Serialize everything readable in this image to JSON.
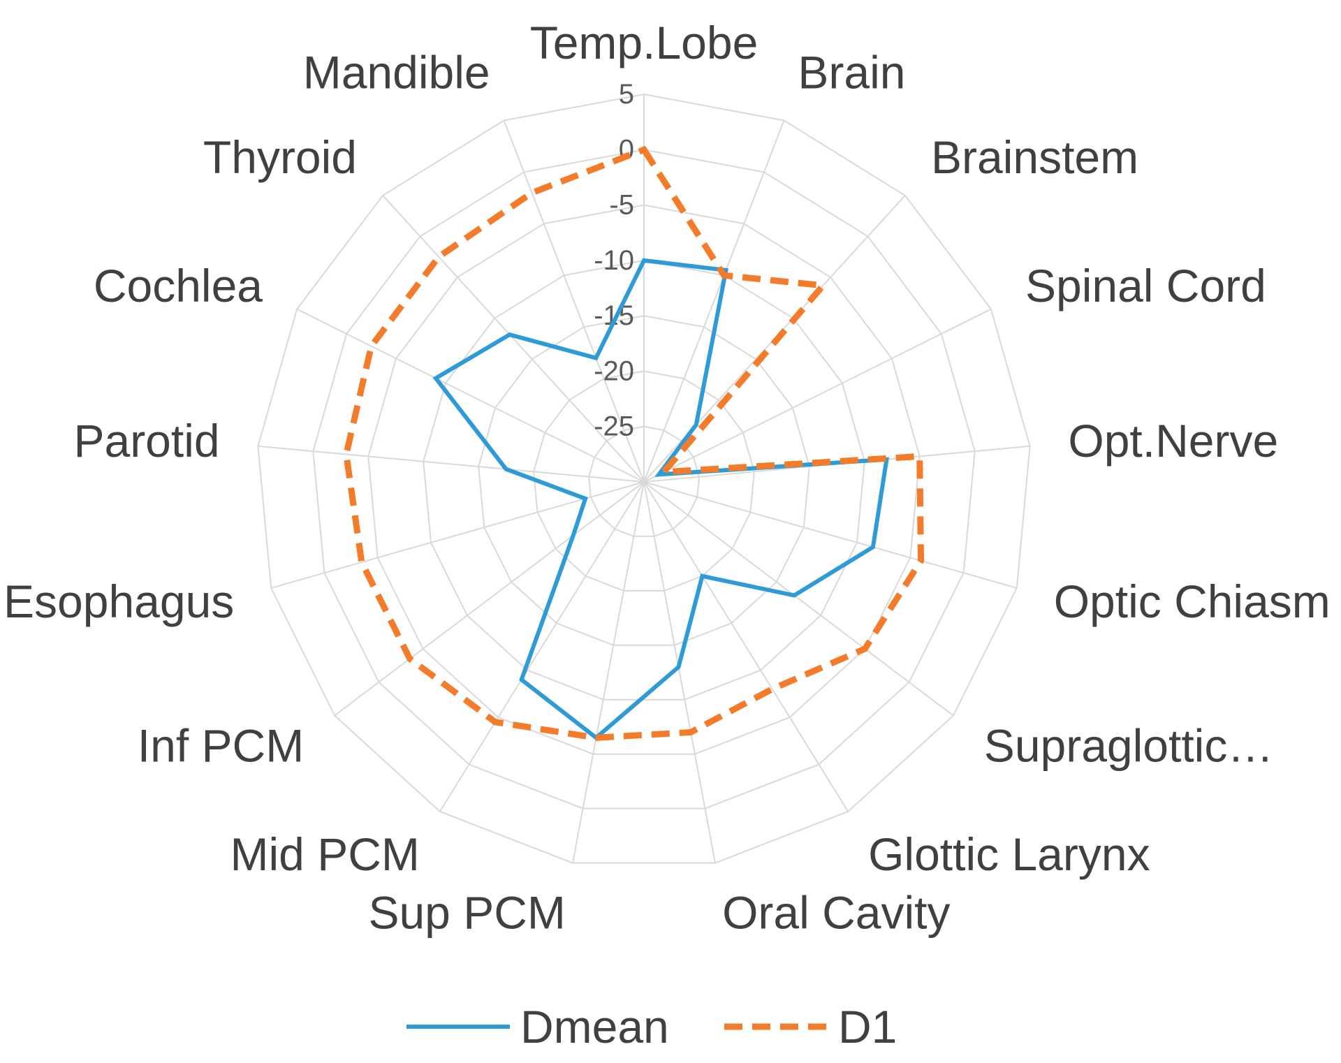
{
  "chart_data": {
    "type": "radar",
    "title": "",
    "categories": [
      "Temp.Lobe",
      "Brain",
      "Brainstem",
      "Spinal Cord",
      "Opt.Nerve",
      "Optic Chiasm",
      "Supraglottic…",
      "Glottic Larynx",
      "Oral Cavity",
      "Sup PCM",
      "Mid PCM",
      "Inf PCM",
      "Esophagus",
      "Parotid",
      "Cochlea",
      "Thyroid",
      "Mandible"
    ],
    "ticks": [
      5,
      0,
      -5,
      -10,
      -15,
      -20,
      -25
    ],
    "tick_labels": [
      "5",
      "0",
      "-5",
      "-10",
      "-15",
      "-20",
      "-25"
    ],
    "rlim": [
      -30,
      5
    ],
    "grid": true,
    "legend_position": "bottom",
    "series": [
      {
        "name": "Dmean",
        "color": "#2E9BD6",
        "dash": "solid",
        "values": [
          -10,
          -9.5,
          -23,
          -28.5,
          -8,
          -8.5,
          -13,
          -20,
          -13,
          -6.5,
          -9,
          -22,
          -24.5,
          -17.5,
          -9,
          -12,
          -18
        ]
      },
      {
        "name": "D1",
        "color": "#F47B2A",
        "dash": "dashed",
        "values": [
          0,
          -10,
          -6,
          -28,
          -5,
          -4,
          -5,
          -8,
          -7,
          -6.5,
          -4.5,
          -3.5,
          -3.5,
          -3,
          -2.5,
          -2.5,
          -2
        ]
      }
    ]
  }
}
